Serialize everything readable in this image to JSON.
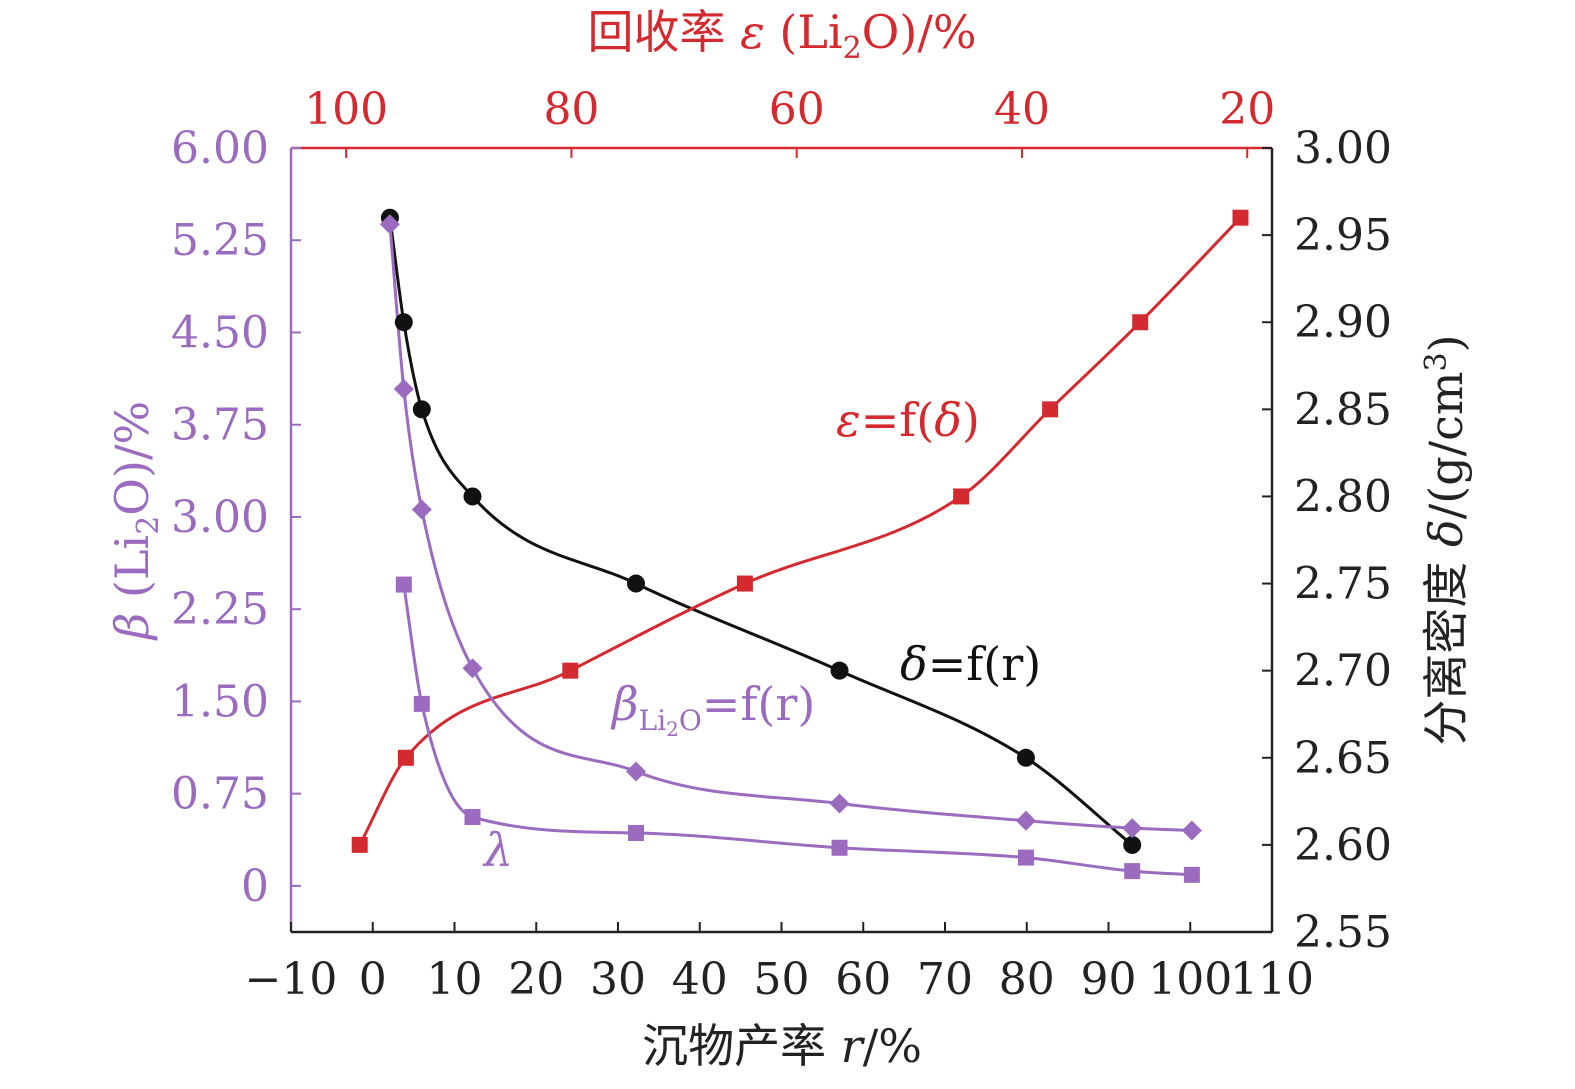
{
  "chart_data": {
    "type": "line",
    "top_axis": {
      "label_prefix": "回收率 ",
      "label_symbol": "ε",
      "label_mid": " (Li",
      "label_sub": "2",
      "label_suffix": "O)/%",
      "range": [
        104.9,
        17.8
      ],
      "ticks": [
        "100",
        "80",
        "60",
        "40",
        "20"
      ],
      "tick_values": [
        100,
        80,
        60,
        40,
        20
      ],
      "color": "#d42a2f"
    },
    "bottom_axis": {
      "label_prefix": "沉物产率 ",
      "label_symbol": "r",
      "label_suffix": "/%",
      "range": [
        -10,
        110
      ],
      "ticks": [
        "−10",
        "0",
        "10",
        "20",
        "30",
        "40",
        "50",
        "60",
        "70",
        "80",
        "90",
        "100",
        "110"
      ],
      "tick_values": [
        -10,
        0,
        10,
        20,
        30,
        40,
        50,
        60,
        70,
        80,
        90,
        100,
        110
      ]
    },
    "left_axis": {
      "label_symbol": "β",
      "label_mid": " (Li",
      "label_sub": "2",
      "label_suffix": "O)/%",
      "range": [
        -0.375,
        6.0
      ],
      "ticks": [
        "6.00",
        "5.25",
        "4.50",
        "3.75",
        "3.00",
        "2.25",
        "1.50",
        "0.75",
        "0"
      ],
      "tick_values": [
        6.0,
        5.25,
        4.5,
        3.75,
        3.0,
        2.25,
        1.5,
        0.75,
        0
      ],
      "color": "#9b6bbf"
    },
    "right_axis": {
      "label_prefix": "分离密度 ",
      "label_symbol": "δ",
      "label_suffix": "/(g/cm",
      "label_sup": "3",
      "label_end": ")",
      "range": [
        2.55,
        3.0
      ],
      "ticks": [
        "3.00",
        "2.95",
        "2.90",
        "2.85",
        "2.80",
        "2.75",
        "2.70",
        "2.65",
        "2.60",
        "2.55"
      ],
      "tick_values": [
        3.0,
        2.95,
        2.9,
        2.85,
        2.8,
        2.75,
        2.7,
        2.65,
        2.6,
        2.55
      ]
    },
    "series": [
      {
        "key": "delta",
        "axes": "r-delta",
        "marker": "circle",
        "color": "#111111",
        "points": [
          [
            2.1,
            2.96
          ],
          [
            3.8,
            2.9
          ],
          [
            6.0,
            2.85
          ],
          [
            12.2,
            2.8
          ],
          [
            32.2,
            2.75
          ],
          [
            57.1,
            2.7
          ],
          [
            79.9,
            2.65
          ],
          [
            92.9,
            2.6
          ]
        ]
      },
      {
        "key": "epsilon",
        "axes": "delta-epsilon",
        "marker": "square",
        "color": "#d42a2f",
        "points": [
          [
            2.6,
            98.8
          ],
          [
            2.65,
            94.7
          ],
          [
            2.7,
            80.1
          ],
          [
            2.75,
            64.6
          ],
          [
            2.8,
            45.4
          ],
          [
            2.85,
            37.5
          ],
          [
            2.9,
            29.5
          ],
          [
            2.96,
            20.6
          ]
        ]
      },
      {
        "key": "beta",
        "axes": "r-beta",
        "marker": "diamond",
        "color": "#9b6bbf",
        "points": [
          [
            2.1,
            5.38
          ],
          [
            3.8,
            4.04
          ],
          [
            6.0,
            3.06
          ],
          [
            12.2,
            1.77
          ],
          [
            32.2,
            0.93
          ],
          [
            57.1,
            0.67
          ],
          [
            79.9,
            0.53
          ],
          [
            92.9,
            0.47
          ],
          [
            100.2,
            0.45
          ]
        ]
      },
      {
        "key": "lambda",
        "axes": "r-beta",
        "marker": "square",
        "color": "#9b6bbf",
        "points": [
          [
            3.8,
            2.45
          ],
          [
            6.0,
            1.48
          ],
          [
            12.2,
            0.56
          ],
          [
            32.2,
            0.43
          ],
          [
            57.1,
            0.31
          ],
          [
            79.9,
            0.23
          ],
          [
            92.9,
            0.12
          ],
          [
            100.2,
            0.09
          ]
        ]
      }
    ],
    "annotations": {
      "epsilon": {
        "sym": "ε",
        "eq": "=f(",
        "sym2": "δ",
        "close": ")",
        "color": "#d42a2f"
      },
      "delta": {
        "sym": "δ",
        "eq": "=f(r)",
        "color": "#111111"
      },
      "beta": {
        "sym": "β",
        "sub": "Li",
        "sub2": "2",
        "sub3": "O",
        "eq": "=f(r)",
        "color": "#9b6bbf"
      },
      "lambda": {
        "sym": "λ",
        "color": "#9b6bbf"
      }
    }
  }
}
